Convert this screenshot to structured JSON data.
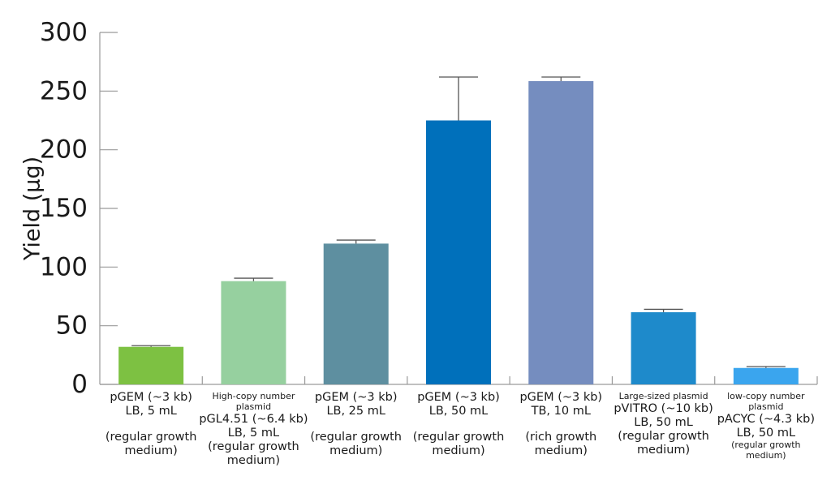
{
  "chart_data": {
    "type": "bar",
    "title": "",
    "xlabel": "",
    "ylabel": "Yield (µg)",
    "ylim": [
      0,
      300
    ],
    "yticks": [
      0,
      50,
      100,
      150,
      200,
      250,
      300
    ],
    "grid": false,
    "legend": "none",
    "categories": [
      {
        "lines": [
          {
            "text": "pGEM (~3 kb)",
            "size": "l"
          },
          {
            "text": "LB, 5 mL",
            "size": "l"
          },
          {
            "text": "",
            "size": "gap"
          },
          {
            "text": "(regular growth",
            "size": "l"
          },
          {
            "text": "medium)",
            "size": "l"
          }
        ]
      },
      {
        "lines": [
          {
            "text": "High-copy number",
            "size": "s"
          },
          {
            "text": "plasmid",
            "size": "s"
          },
          {
            "text": "pGL4.51  (~6.4 kb)",
            "size": "l"
          },
          {
            "text": "LB, 5 mL",
            "size": "l"
          },
          {
            "text": "(regular growth",
            "size": "l"
          },
          {
            "text": "medium)",
            "size": "l"
          }
        ]
      },
      {
        "lines": [
          {
            "text": "pGEM (~3 kb)",
            "size": "l"
          },
          {
            "text": "LB, 25 mL",
            "size": "l"
          },
          {
            "text": "",
            "size": "gap"
          },
          {
            "text": "(regular growth",
            "size": "l"
          },
          {
            "text": "medium)",
            "size": "l"
          }
        ]
      },
      {
        "lines": [
          {
            "text": "pGEM (~3 kb)",
            "size": "l"
          },
          {
            "text": "LB, 50 mL",
            "size": "l"
          },
          {
            "text": "",
            "size": "gap"
          },
          {
            "text": "(regular growth",
            "size": "l"
          },
          {
            "text": "medium)",
            "size": "l"
          }
        ]
      },
      {
        "lines": [
          {
            "text": "pGEM (~3 kb)",
            "size": "l"
          },
          {
            "text": "TB, 10 mL",
            "size": "l"
          },
          {
            "text": "",
            "size": "gap"
          },
          {
            "text": "(rich growth",
            "size": "l"
          },
          {
            "text": "medium)",
            "size": "l"
          }
        ]
      },
      {
        "lines": [
          {
            "text": "Large-sized plasmid",
            "size": "s"
          },
          {
            "text": "pVITRO (~10 kb)",
            "size": "l"
          },
          {
            "text": "LB, 50 mL",
            "size": "l"
          },
          {
            "text": "(regular growth",
            "size": "l"
          },
          {
            "text": "medium)",
            "size": "l"
          }
        ]
      },
      {
        "lines": [
          {
            "text": "low-copy number",
            "size": "s"
          },
          {
            "text": "plasmid",
            "size": "s"
          },
          {
            "text": "pACYC (~4.3 kb)",
            "size": "l"
          },
          {
            "text": "LB, 50 mL",
            "size": "l"
          },
          {
            "text": "(regular growth",
            "size": "s"
          },
          {
            "text": "medium)",
            "size": "s"
          }
        ]
      }
    ],
    "series": [
      {
        "name": "Yield",
        "values": [
          32,
          88,
          120,
          225,
          258.5,
          61.5,
          14
        ],
        "error_upper": [
          33,
          90.5,
          123,
          262,
          262,
          64,
          15.2
        ],
        "colors": [
          "#7dc142",
          "#96d09f",
          "#5e8fa0",
          "#0070bb",
          "#758dbf",
          "#1e8acb",
          "#3aa5ee"
        ]
      }
    ]
  }
}
